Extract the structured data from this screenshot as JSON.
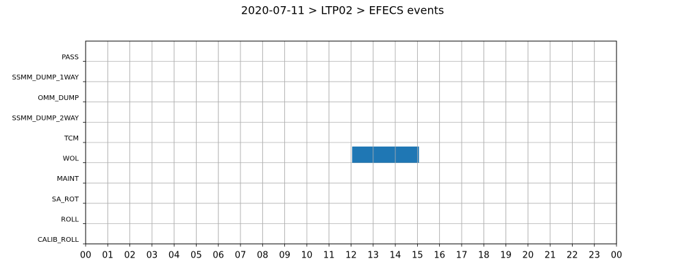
{
  "chart_data": {
    "type": "timeline",
    "title": "2020-07-11 > LTP02 > EFECS events",
    "categories": [
      "PASS",
      "SSMM_DUMP_1WAY",
      "OMM_DUMP",
      "SSMM_DUMP_2WAY",
      "TCM",
      "WOL",
      "MAINT",
      "SA_ROT",
      "ROLL",
      "CALIB_ROLL"
    ],
    "starts": [
      null,
      null,
      null,
      null,
      null,
      12.05,
      null,
      null,
      null,
      null
    ],
    "ends": [
      null,
      null,
      null,
      null,
      null,
      15.07,
      null,
      null,
      null,
      null
    ],
    "color": "#1f77b4",
    "xlim": [
      0,
      24
    ],
    "xticks": [
      {
        "value": 0,
        "label": "00"
      },
      {
        "value": 1,
        "label": "01"
      },
      {
        "value": 2,
        "label": "02"
      },
      {
        "value": 3,
        "label": "03"
      },
      {
        "value": 4,
        "label": "04"
      },
      {
        "value": 5,
        "label": "05"
      },
      {
        "value": 6,
        "label": "06"
      },
      {
        "value": 7,
        "label": "07"
      },
      {
        "value": 8,
        "label": "08"
      },
      {
        "value": 9,
        "label": "09"
      },
      {
        "value": 10,
        "label": "10"
      },
      {
        "value": 11,
        "label": "11"
      },
      {
        "value": 12,
        "label": "12"
      },
      {
        "value": 13,
        "label": "13"
      },
      {
        "value": 14,
        "label": "14"
      },
      {
        "value": 15,
        "label": "15"
      },
      {
        "value": 16,
        "label": "16"
      },
      {
        "value": 17,
        "label": "17"
      },
      {
        "value": 18,
        "label": "18"
      },
      {
        "value": 19,
        "label": "19"
      },
      {
        "value": 20,
        "label": "20"
      },
      {
        "value": 21,
        "label": "21"
      },
      {
        "value": 22,
        "label": "22"
      },
      {
        "value": 23,
        "label": "23"
      },
      {
        "value": 24,
        "label": "00"
      }
    ],
    "grid": true
  }
}
